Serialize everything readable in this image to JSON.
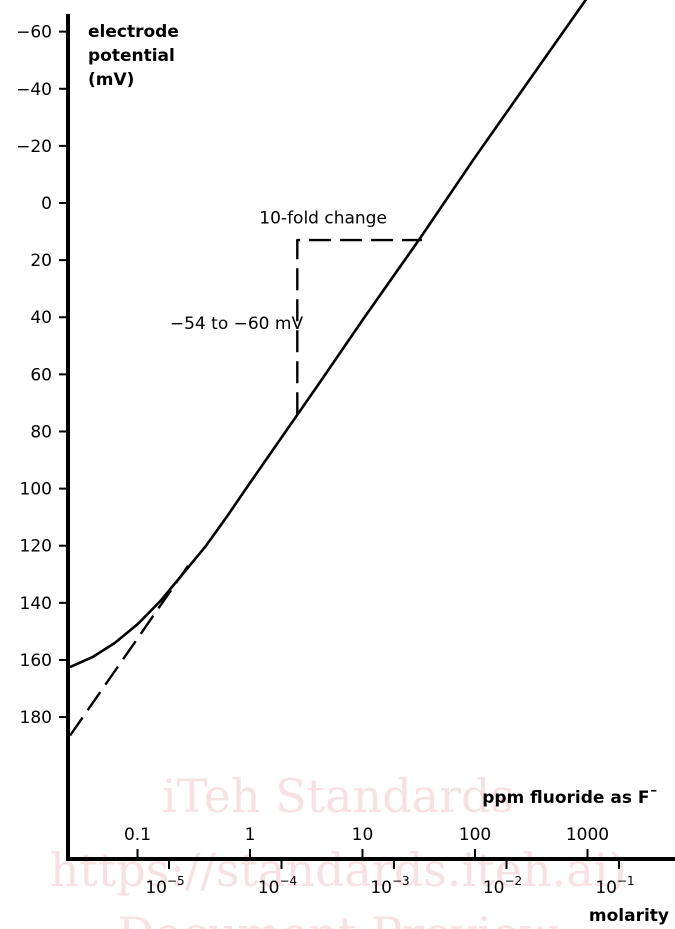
{
  "chart_data": {
    "type": "line",
    "ylabel": [
      "electrode",
      "potential",
      "(mV)"
    ],
    "y_axis": {
      "ticks": [
        -60,
        -40,
        -20,
        0,
        20,
        40,
        60,
        80,
        100,
        120,
        140,
        160,
        180
      ],
      "tick_labels": [
        "−60",
        "−40",
        "−20",
        "0",
        "20",
        "40",
        "60",
        "80",
        "100",
        "120",
        "140",
        "160",
        "180"
      ],
      "ylim": [
        200,
        -65
      ],
      "inverted": true
    },
    "x_axis_ppm": {
      "label": "ppm fluoride as F¯",
      "ticks_log10": [
        -1,
        0,
        1,
        2,
        3
      ],
      "tick_labels": [
        "0.1",
        "1",
        "10",
        "100",
        "1000"
      ]
    },
    "x_axis_molarity": {
      "label": "molarity",
      "ticks_log10": [
        -5,
        -4,
        -3,
        -2,
        -1
      ],
      "tick_labels": [
        {
          "base": "10",
          "exp": "−5"
        },
        {
          "base": "10",
          "exp": "−4"
        },
        {
          "base": "10",
          "exp": "−3"
        },
        {
          "base": "10",
          "exp": "−2"
        },
        {
          "base": "10",
          "exp": "−1"
        }
      ]
    },
    "xlim_log10_ppm": [
      -1.6,
      3.85
    ],
    "series": [
      {
        "style": "solid",
        "points_log10ppm_mV": [
          [
            -1.6,
            162.5
          ],
          [
            -1.4,
            159
          ],
          [
            -1.2,
            154
          ],
          [
            -1.0,
            147.5
          ],
          [
            -0.8,
            139.5
          ],
          [
            -0.6,
            130
          ],
          [
            -0.4,
            120.5
          ],
          [
            -0.2,
            109.5
          ],
          [
            0.0,
            98
          ],
          [
            0.6,
            64
          ],
          [
            1.0,
            41
          ],
          [
            1.5,
            13
          ],
          [
            2.0,
            -16
          ],
          [
            2.5,
            -44
          ],
          [
            3.0,
            -72
          ]
        ]
      },
      {
        "style": "dashed",
        "points_log10ppm_mV": [
          [
            -1.6,
            186.5
          ],
          [
            -0.55,
            127
          ]
        ]
      },
      {
        "style": "dashed",
        "points_log10ppm_mV": [
          [
            0.42,
            74
          ],
          [
            0.42,
            13
          ],
          [
            1.53,
            13
          ]
        ]
      }
    ],
    "annotations": [
      {
        "text": "10-fold change",
        "x_log10ppm": 0.65,
        "y_mV": 5
      },
      {
        "text": "−54 to −60 mV",
        "x_log10ppm": -0.12,
        "y_mV": 42
      }
    ],
    "watermarks": [
      "iTeh Standards",
      "https://standards.iteh.ai)",
      "Document Preview"
    ],
    "grid": false,
    "legend": "none"
  }
}
